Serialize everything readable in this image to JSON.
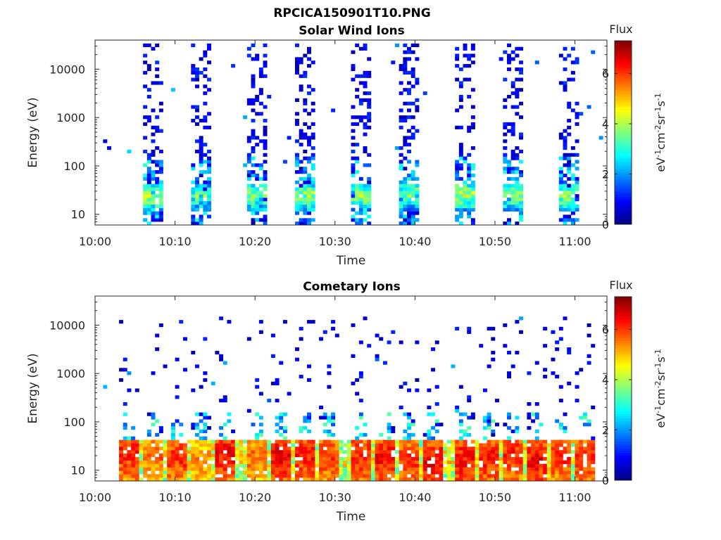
{
  "figure": {
    "title": "RPCICA150901T10.PNG"
  },
  "colormap": {
    "name": "jet",
    "stops": [
      "#00007f",
      "#0000ff",
      "#007fff",
      "#00ffff",
      "#7fff7f",
      "#ffff00",
      "#ff7f00",
      "#ff0000",
      "#7f0000"
    ]
  },
  "chart_data": [
    {
      "type": "heatmap",
      "title": "Solar Wind Ions",
      "xlabel": "Time",
      "ylabel": "Energy (eV)",
      "yscale": "log",
      "xlim": [
        "10:00",
        "11:04"
      ],
      "ylim": [
        6,
        40000
      ],
      "xticks": [
        "10:00",
        "10:10",
        "10:20",
        "10:30",
        "10:40",
        "10:50",
        "11:00"
      ],
      "yticks": [
        10,
        100,
        1000,
        10000
      ],
      "ytick_labels": [
        "10",
        "100",
        "1000",
        "10000"
      ],
      "colorbar": {
        "label": "Flux",
        "units": "eV-1cm-2sr-1s-1",
        "range": [
          0,
          7.3
        ],
        "ticks": [
          0,
          2,
          4,
          6
        ]
      },
      "pattern": "periodic bursts every ~6.5 min; sparse low flux (0-2) from 6 eV to ~30 keV, moderate flux (3-5) at 15-40 eV",
      "bursts": [
        {
          "time": "10:07",
          "peak_energy_eV": 25,
          "peak_flux": 4.8
        },
        {
          "time": "10:13",
          "peak_energy_eV": 25,
          "peak_flux": 4.2
        },
        {
          "time": "10:20",
          "peak_energy_eV": 25,
          "peak_flux": 4.5
        },
        {
          "time": "10:26",
          "peak_energy_eV": 25,
          "peak_flux": 4.6
        },
        {
          "time": "10:33",
          "peak_energy_eV": 25,
          "peak_flux": 4.8
        },
        {
          "time": "10:39",
          "peak_energy_eV": 25,
          "peak_flux": 4.4
        },
        {
          "time": "10:46",
          "peak_energy_eV": 25,
          "peak_flux": 4.9
        },
        {
          "time": "10:52",
          "peak_energy_eV": 25,
          "peak_flux": 4.5
        },
        {
          "time": "10:59",
          "peak_energy_eV": 25,
          "peak_flux": 4.6
        }
      ]
    },
    {
      "type": "heatmap",
      "title": "Cometary Ions",
      "xlabel": "Time",
      "ylabel": "Energy (eV)",
      "yscale": "log",
      "xlim": [
        "10:00",
        "11:04"
      ],
      "ylim": [
        6,
        40000
      ],
      "xticks": [
        "10:00",
        "10:10",
        "10:20",
        "10:30",
        "10:40",
        "10:50",
        "11:00"
      ],
      "yticks": [
        10,
        100,
        1000,
        10000
      ],
      "ytick_labels": [
        "10",
        "100",
        "1000",
        "10000"
      ],
      "colorbar": {
        "label": "Flux",
        "units": "eV-1cm-2sr-1s-1",
        "range": [
          0,
          7.3
        ],
        "ticks": [
          0,
          2,
          4,
          6
        ]
      },
      "pattern": "continuous high flux (6-7) at 8-40 eV from 10:03 to 11:02, periodic enhancements every ~3.3 min; sparse low flux up to ~15 keV",
      "bursts": [
        {
          "time": "10:04",
          "peak_energy_eV": 25,
          "peak_flux": 6.8
        },
        {
          "time": "10:07",
          "peak_energy_eV": 20,
          "peak_flux": 6.2
        },
        {
          "time": "10:10",
          "peak_energy_eV": 18,
          "peak_flux": 6.6
        },
        {
          "time": "10:13",
          "peak_energy_eV": 15,
          "peak_flux": 6.0
        },
        {
          "time": "10:16",
          "peak_energy_eV": 22,
          "peak_flux": 6.9
        },
        {
          "time": "10:20",
          "peak_energy_eV": 18,
          "peak_flux": 6.2
        },
        {
          "time": "10:23",
          "peak_energy_eV": 20,
          "peak_flux": 7.0
        },
        {
          "time": "10:26",
          "peak_energy_eV": 20,
          "peak_flux": 6.8
        },
        {
          "time": "10:29",
          "peak_energy_eV": 18,
          "peak_flux": 6.5
        },
        {
          "time": "10:33",
          "peak_energy_eV": 18,
          "peak_flux": 6.7
        },
        {
          "time": "10:36",
          "peak_energy_eV": 18,
          "peak_flux": 6.9
        },
        {
          "time": "10:39",
          "peak_energy_eV": 16,
          "peak_flux": 6.6
        },
        {
          "time": "10:42",
          "peak_energy_eV": 14,
          "peak_flux": 7.0
        },
        {
          "time": "10:46",
          "peak_energy_eV": 16,
          "peak_flux": 6.9
        },
        {
          "time": "10:49",
          "peak_energy_eV": 18,
          "peak_flux": 6.8
        },
        {
          "time": "10:52",
          "peak_energy_eV": 20,
          "peak_flux": 6.7
        },
        {
          "time": "10:55",
          "peak_energy_eV": 16,
          "peak_flux": 6.9
        },
        {
          "time": "10:58",
          "peak_energy_eV": 20,
          "peak_flux": 6.6
        },
        {
          "time": "11:01",
          "peak_energy_eV": 18,
          "peak_flux": 6.7
        }
      ]
    }
  ]
}
